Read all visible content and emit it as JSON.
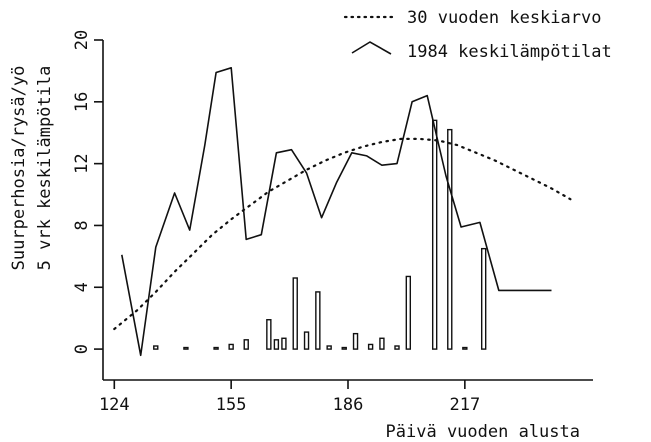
{
  "chart_data": {
    "type": "bar",
    "xlabel": "Päivä vuoden alusta",
    "ylabel_lines": [
      "Suurperhosia/rysä/yö",
      "5 vrk keskilämpötila"
    ],
    "xlim": [
      121,
      251
    ],
    "ylim": [
      -2,
      20
    ],
    "x_ticks": [
      124,
      155,
      186,
      217
    ],
    "y_ticks": [
      0,
      4,
      8,
      12,
      16,
      20
    ],
    "legend_position": "top-right",
    "grid": false,
    "series": [
      {
        "name": "30 vuoden keskiarvo",
        "kind": "line",
        "style": "dotted",
        "x": [
          124,
          130,
          135,
          140,
          145,
          150,
          155,
          160,
          165,
          170,
          175,
          180,
          185,
          190,
          195,
          200,
          205,
          210,
          215,
          220,
          225,
          230,
          235,
          240,
          245
        ],
        "y": [
          1.3,
          2.5,
          3.7,
          5.0,
          6.2,
          7.4,
          8.4,
          9.3,
          10.2,
          10.9,
          11.6,
          12.2,
          12.7,
          13.1,
          13.4,
          13.6,
          13.6,
          13.5,
          13.2,
          12.7,
          12.2,
          11.6,
          11.0,
          10.4,
          9.7
        ]
      },
      {
        "name": "1984 keskilämpötilat",
        "kind": "line",
        "style": "solid",
        "x": [
          126,
          131,
          135,
          140,
          144,
          148,
          151,
          155,
          159,
          163,
          167,
          171,
          175,
          179,
          183,
          187,
          191,
          195,
          199,
          203,
          207,
          212,
          216,
          221,
          226,
          230,
          234,
          240
        ],
        "y": [
          6.1,
          -0.4,
          6.6,
          10.1,
          7.7,
          13.2,
          17.9,
          18.2,
          7.1,
          7.4,
          12.7,
          12.9,
          11.4,
          8.5,
          10.8,
          12.7,
          12.5,
          11.9,
          12.0,
          16.0,
          16.4,
          11.2,
          7.9,
          8.2,
          3.8,
          3.8,
          3.8,
          3.8
        ]
      },
      {
        "name": "Suurperhosia/rysä/yö",
        "kind": "bar",
        "x": [
          135,
          143,
          151,
          155,
          159,
          165,
          167,
          169,
          172,
          175,
          178,
          181,
          185,
          188,
          192,
          195,
          199,
          202,
          209,
          213,
          217,
          222
        ],
        "y": [
          0.2,
          0.1,
          0.1,
          0.3,
          0.6,
          1.9,
          0.6,
          0.7,
          4.6,
          1.1,
          3.7,
          0.2,
          0.1,
          1.0,
          0.3,
          0.7,
          0.2,
          4.7,
          14.8,
          14.2,
          0.1,
          6.5
        ]
      }
    ]
  }
}
